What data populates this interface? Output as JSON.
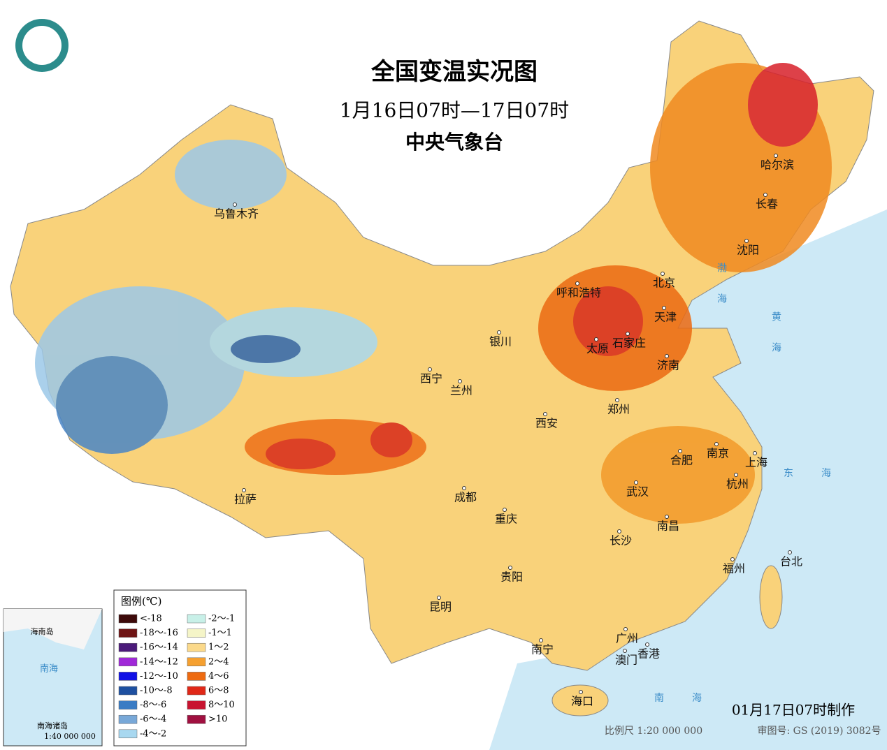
{
  "header": {
    "title": "全国变温实况图",
    "subtitle": "1月16日07时—17日07时",
    "org": "中央气象台"
  },
  "legend": {
    "title": "图例(℃)",
    "items": [
      {
        "label": "<-18",
        "color": "#3d0a0a"
      },
      {
        "label": "-18～-16",
        "color": "#6e1414"
      },
      {
        "label": "-16～-14",
        "color": "#4b1a7a"
      },
      {
        "label": "-14～-12",
        "color": "#a028d8"
      },
      {
        "label": "-12～-10",
        "color": "#1010e6"
      },
      {
        "label": "-10～-8",
        "color": "#1e50a0"
      },
      {
        "label": "-8～-6",
        "color": "#3a7cc4"
      },
      {
        "label": "-6～-4",
        "color": "#78a8d8"
      },
      {
        "label": "-4～-2",
        "color": "#a8d8f0"
      },
      {
        "label": "-2～-1",
        "color": "#c8f0e8"
      },
      {
        "label": "-1～1",
        "color": "#f5f5c8"
      },
      {
        "label": "1～2",
        "color": "#fbd98a"
      },
      {
        "label": "2～4",
        "color": "#f5a030"
      },
      {
        "label": "4～6",
        "color": "#ee6a10"
      },
      {
        "label": "6～8",
        "color": "#e02818"
      },
      {
        "label": "8～10",
        "color": "#c81430"
      },
      {
        "label": ">10",
        "color": "#a01040"
      }
    ]
  },
  "cities": [
    "乌鲁木齐",
    "哈尔滨",
    "长春",
    "沈阳",
    "呼和浩特",
    "北京",
    "天津",
    "银川",
    "太原",
    "石家庄",
    "济南",
    "西宁",
    "兰州",
    "郑州",
    "西安",
    "合肥",
    "南京",
    "上海",
    "拉萨",
    "成都",
    "武汉",
    "杭州",
    "重庆",
    "南昌",
    "长沙",
    "福州",
    "台北",
    "贵阳",
    "昆明",
    "广州",
    "南宁",
    "香港",
    "澳门",
    "海口"
  ],
  "seas": [
    "渤海",
    "黄海",
    "东海",
    "南海"
  ],
  "inset": {
    "labels": [
      "南海",
      "南海诸岛",
      "海南岛"
    ],
    "scale": "1:40 000 000"
  },
  "footer": {
    "made": "01月17日07时制作",
    "scale": "比例尺 1:20 000 000",
    "approval": "审图号: GS (2019) 3082号"
  }
}
